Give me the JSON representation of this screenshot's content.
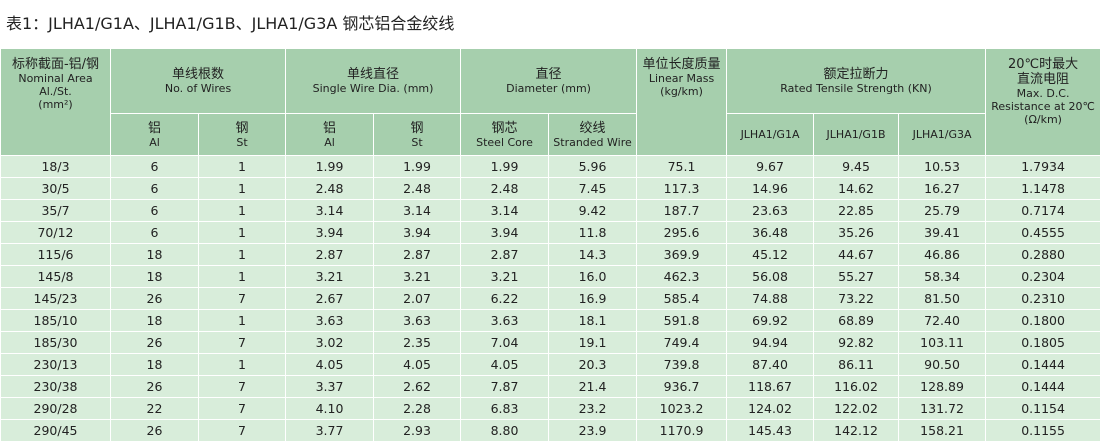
{
  "title": "表1：JLHA1/G1A、JLHA1/G1B、JLHA1/G3A 钢芯铝合金绞线",
  "header": {
    "area": [
      "标称截面-铝/钢",
      "Nominal Area",
      "Al./St.",
      "(mm²)"
    ],
    "wires": [
      "单线根数",
      "No. of Wires"
    ],
    "wires_al": [
      "铝",
      "Al"
    ],
    "wires_st": [
      "钢",
      "St"
    ],
    "dia": [
      "单线直径",
      "Single Wire Dia. (mm)"
    ],
    "dia_al": [
      "铝",
      "Al"
    ],
    "dia_st": [
      "钢",
      "St"
    ],
    "diameter": [
      "直径",
      "Diameter (mm)"
    ],
    "core": [
      "钢芯",
      "Steel Core"
    ],
    "stranded": [
      "绞线",
      "Stranded Wire"
    ],
    "mass": [
      "单位长度质量",
      "Linear Mass",
      "(kg/km)"
    ],
    "strength": [
      "额定拉断力",
      "Rated Tensile Strength (KN)"
    ],
    "g1a": [
      "JLHA1/G1A"
    ],
    "g1b": [
      "JLHA1/G1B"
    ],
    "g3a": [
      "JLHA1/G3A"
    ],
    "resistance": [
      "20℃时最大",
      "直流电阻",
      "Max. D.C.",
      "Resistance at 20℃",
      "(Ω/km)"
    ]
  },
  "table": {
    "rows": [
      [
        "18/3",
        "6",
        "1",
        "1.99",
        "1.99",
        "1.99",
        "5.96",
        "75.1",
        "9.67",
        "9.45",
        "10.53",
        "1.7934"
      ],
      [
        "30/5",
        "6",
        "1",
        "2.48",
        "2.48",
        "2.48",
        "7.45",
        "117.3",
        "14.96",
        "14.62",
        "16.27",
        "1.1478"
      ],
      [
        "35/7",
        "6",
        "1",
        "3.14",
        "3.14",
        "3.14",
        "9.42",
        "187.7",
        "23.63",
        "22.85",
        "25.79",
        "0.7174"
      ],
      [
        "70/12",
        "6",
        "1",
        "3.94",
        "3.94",
        "3.94",
        "11.8",
        "295.6",
        "36.48",
        "35.26",
        "39.41",
        "0.4555"
      ],
      [
        "115/6",
        "18",
        "1",
        "2.87",
        "2.87",
        "2.87",
        "14.3",
        "369.9",
        "45.12",
        "44.67",
        "46.86",
        "0.2880"
      ],
      [
        "145/8",
        "18",
        "1",
        "3.21",
        "3.21",
        "3.21",
        "16.0",
        "462.3",
        "56.08",
        "55.27",
        "58.34",
        "0.2304"
      ],
      [
        "145/23",
        "26",
        "7",
        "2.67",
        "2.07",
        "6.22",
        "16.9",
        "585.4",
        "74.88",
        "73.22",
        "81.50",
        "0.2310"
      ],
      [
        "185/10",
        "18",
        "1",
        "3.63",
        "3.63",
        "3.63",
        "18.1",
        "591.8",
        "69.92",
        "68.89",
        "72.40",
        "0.1800"
      ],
      [
        "185/30",
        "26",
        "7",
        "3.02",
        "2.35",
        "7.04",
        "19.1",
        "749.4",
        "94.94",
        "92.82",
        "103.11",
        "0.1805"
      ],
      [
        "230/13",
        "18",
        "1",
        "4.05",
        "4.05",
        "4.05",
        "20.3",
        "739.8",
        "87.40",
        "86.11",
        "90.50",
        "0.1444"
      ],
      [
        "230/38",
        "26",
        "7",
        "3.37",
        "2.62",
        "7.87",
        "21.4",
        "936.7",
        "118.67",
        "116.02",
        "128.89",
        "0.1444"
      ],
      [
        "290/28",
        "22",
        "7",
        "4.10",
        "2.28",
        "6.83",
        "23.2",
        "1023.2",
        "124.02",
        "122.02",
        "131.72",
        "0.1154"
      ],
      [
        "290/45",
        "26",
        "7",
        "3.77",
        "2.93",
        "8.80",
        "23.9",
        "1170.9",
        "145.43",
        "142.12",
        "158.21",
        "0.1155"
      ]
    ]
  }
}
